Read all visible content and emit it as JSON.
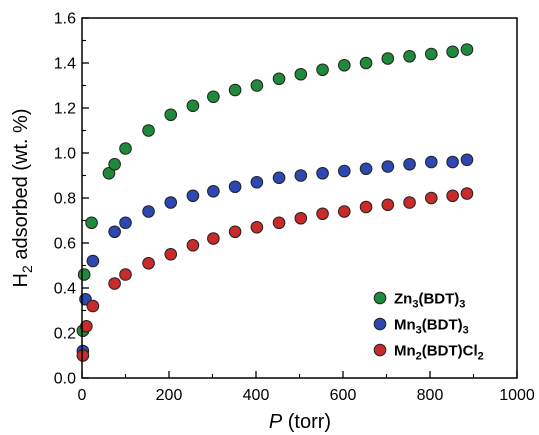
{
  "chart_data": {
    "type": "scatter",
    "title": "",
    "xlabel": {
      "italic_part": "P",
      "rest": " (torr)"
    },
    "ylabel": {
      "prefix": "H",
      "subscript": "2",
      "rest": " adsorbed (wt. %)"
    },
    "xlim": [
      0,
      1000
    ],
    "ylim": [
      0,
      1.6
    ],
    "xticks": [
      0,
      200,
      400,
      600,
      800,
      1000
    ],
    "yticks": [
      "0.0",
      "0.2",
      "0.4",
      "0.6",
      "0.8",
      "1.0",
      "1.2",
      "1.4",
      "1.6"
    ],
    "grid": false,
    "legend_position": "bottom-right",
    "marker": "circle",
    "series": [
      {
        "name": "Zn3(BDT)3",
        "name_parts": [
          [
            "Zn",
            ""
          ],
          [
            "3",
            "sub"
          ],
          [
            "(BDT)",
            ""
          ],
          [
            "3",
            "sub"
          ]
        ],
        "color": "#1f8a3b",
        "x": [
          2,
          5,
          22,
          62,
          75,
          100,
          153,
          204,
          255,
          302,
          352,
          402,
          453,
          503,
          553,
          603,
          653,
          703,
          753,
          803,
          852,
          885
        ],
        "y": [
          0.21,
          0.46,
          0.69,
          0.91,
          0.95,
          1.02,
          1.1,
          1.17,
          1.21,
          1.25,
          1.28,
          1.3,
          1.33,
          1.35,
          1.37,
          1.39,
          1.4,
          1.42,
          1.43,
          1.44,
          1.45,
          1.46
        ]
      },
      {
        "name": "Mn3(BDT)3",
        "name_parts": [
          [
            "Mn",
            ""
          ],
          [
            "3",
            "sub"
          ],
          [
            "(BDT)",
            ""
          ],
          [
            "3",
            "sub"
          ]
        ],
        "color": "#2d48b3",
        "x": [
          2,
          8,
          25,
          75,
          100,
          153,
          204,
          255,
          302,
          352,
          402,
          453,
          503,
          553,
          603,
          653,
          703,
          753,
          803,
          852,
          885
        ],
        "y": [
          0.12,
          0.35,
          0.52,
          0.65,
          0.69,
          0.74,
          0.78,
          0.81,
          0.83,
          0.85,
          0.87,
          0.89,
          0.9,
          0.91,
          0.92,
          0.93,
          0.94,
          0.95,
          0.96,
          0.96,
          0.97
        ]
      },
      {
        "name": "Mn2(BDT)Cl2",
        "name_parts": [
          [
            "Mn",
            ""
          ],
          [
            "2",
            "sub"
          ],
          [
            "(BDT)Cl",
            ""
          ],
          [
            "2",
            "sub"
          ]
        ],
        "color": "#c92a2a",
        "x": [
          2,
          10,
          25,
          75,
          100,
          153,
          204,
          255,
          302,
          352,
          402,
          453,
          503,
          553,
          603,
          653,
          703,
          753,
          803,
          852,
          885
        ],
        "y": [
          0.1,
          0.23,
          0.32,
          0.42,
          0.46,
          0.51,
          0.55,
          0.59,
          0.62,
          0.65,
          0.67,
          0.69,
          0.71,
          0.73,
          0.74,
          0.76,
          0.77,
          0.78,
          0.8,
          0.81,
          0.82
        ]
      }
    ]
  }
}
